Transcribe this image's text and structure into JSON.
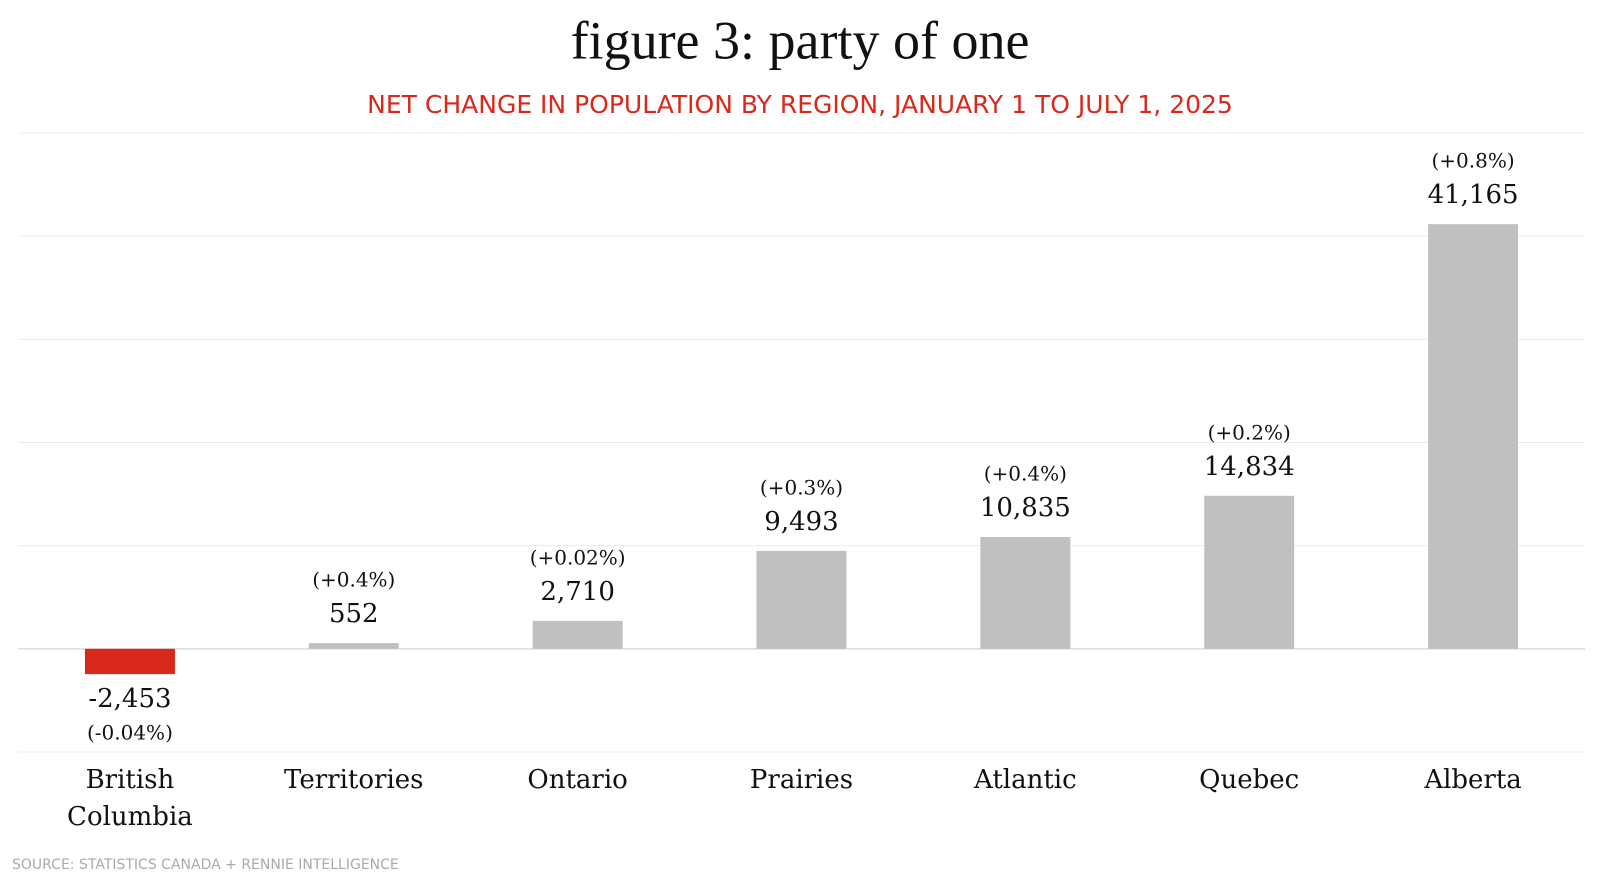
{
  "chart_data": {
    "type": "bar",
    "title": "figure 3: party of one",
    "subtitle": "NET CHANGE IN POPULATION BY REGION, JANUARY 1 TO JULY  1, 2025",
    "categories": [
      "British Columbia",
      "Territories",
      "Ontario",
      "Prairies",
      "Atlantic",
      "Quebec",
      "Alberta"
    ],
    "values": [
      -2453,
      552,
      2710,
      9493,
      10835,
      14834,
      41165
    ],
    "value_labels": [
      "-2,453",
      "552",
      "2,710",
      "9,493",
      "10,835",
      "14,834",
      "41,165"
    ],
    "change_labels": [
      "(-0.04%)",
      "(+0.4%)",
      "(+0.02%)",
      "(+0.3%)",
      "(+0.4%)",
      "(+0.2%)",
      "(+0.8%)"
    ],
    "color": "#c0c0c0",
    "negative_color": "#d9291c",
    "ylim": [
      -10000,
      50000
    ],
    "yticks": [
      -10000,
      0,
      10000,
      20000,
      30000,
      40000,
      50000
    ],
    "grid": true,
    "source": "SOURCE: STATISTICS CANADA + RENNIE INTELLIGENCE"
  }
}
